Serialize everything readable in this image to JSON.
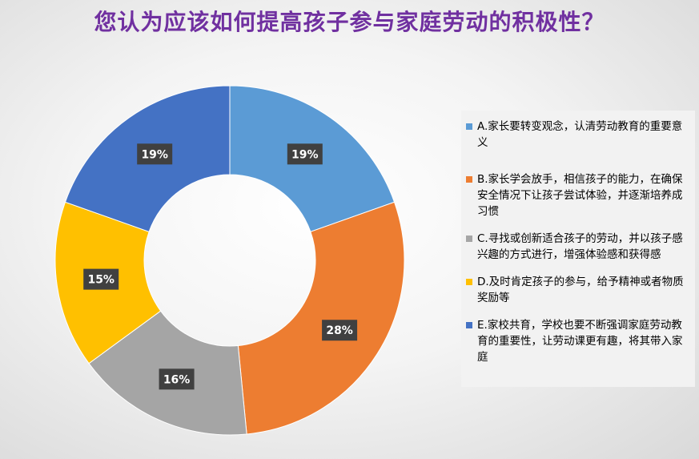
{
  "chart_data": {
    "type": "pie",
    "donut": true,
    "title": "您认为应该如何提高孩子参与家庭劳动的积极性？",
    "categories": [
      "A.家长要转变观念，认清劳动教育的重要意义",
      "B.家长学会放手，相信孩子的能力，在确保安全情况下让孩子尝试体验，并逐渐培养成习惯",
      "C.寻找或创新适合孩子的劳动，并以孩子感兴趣的方式进行，增强体验感和获得感",
      "D.及时肯定孩子的参与，给予精神或者物质奖励等",
      "E.家校共育，学校也要不断强调家庭劳动教育的重要性，让劳动课更有趣，将其带入家庭"
    ],
    "values": [
      19,
      28,
      16,
      15,
      19
    ],
    "data_labels": [
      "19%",
      "28%",
      "16%",
      "15%",
      "19%"
    ],
    "colors": [
      "#5b9bd5",
      "#ed7d31",
      "#a5a5a5",
      "#ffc000",
      "#4472c4"
    ],
    "legend_position": "right"
  }
}
